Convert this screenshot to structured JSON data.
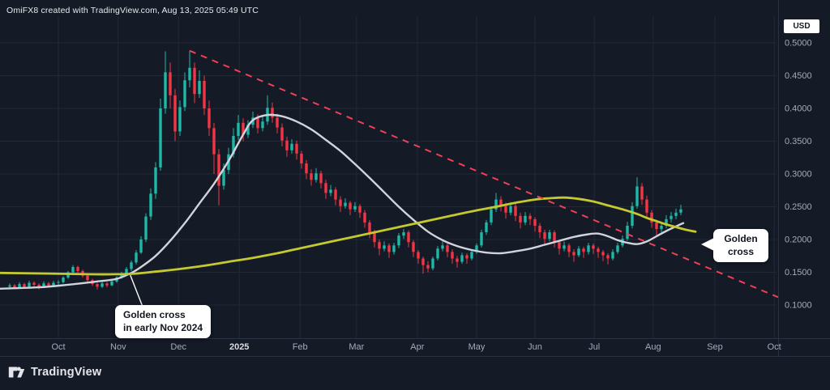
{
  "header": {
    "credit": "OmiFX8 created with TradingView.com, Aug 13, 2025 05:49 UTC"
  },
  "price_axis": {
    "currency_label": "USD",
    "ticks": [
      "0.5000",
      "0.4500",
      "0.4000",
      "0.3500",
      "0.3000",
      "0.2500",
      "0.2000",
      "0.1500",
      "0.1000"
    ]
  },
  "time_axis": {
    "labels": [
      "Oct",
      "Nov",
      "Dec",
      "2025",
      "Feb",
      "Mar",
      "Apr",
      "May",
      "Jun",
      "Jul",
      "Aug",
      "Sep",
      "Oct"
    ]
  },
  "annotations": {
    "nov_cross": {
      "line1": "Golden cross",
      "line2": "in early Nov 2024"
    },
    "aug_cross": {
      "text": "Golden cross"
    }
  },
  "footer": {
    "brand": "TradingView"
  },
  "colors": {
    "background": "#141a26",
    "grid": "#212838",
    "separator": "#2a3142",
    "axis_text": "#a6abb9",
    "axis_text_bright": "#d9dce3",
    "up": "#1fb8a6",
    "down": "#f23645",
    "ma_fast": "#d1d4dc",
    "ma_slow": "#c4c92f",
    "trendline": "#ef4056",
    "pointer": "#ffffff",
    "annotation_bg": "#ffffff",
    "annotation_text": "#10151f"
  },
  "chart_data": {
    "type": "candlestick",
    "title": "",
    "currency": "USD",
    "ylim": [
      0.08,
      0.52
    ],
    "grid": true,
    "price_gridlines": [
      0.5,
      0.45,
      0.4,
      0.35,
      0.3,
      0.25,
      0.2,
      0.15,
      0.1
    ],
    "x_months": [
      "Oct",
      "Nov",
      "Dec",
      "2025",
      "Feb",
      "Mar",
      "Apr",
      "May",
      "Jun",
      "Jul",
      "Aug",
      "Sep",
      "Oct"
    ],
    "candles": [
      [
        0.128,
        0.133,
        0.124,
        0.13
      ],
      [
        0.13,
        0.132,
        0.124,
        0.127
      ],
      [
        0.127,
        0.135,
        0.126,
        0.132
      ],
      [
        0.132,
        0.134,
        0.125,
        0.128
      ],
      [
        0.128,
        0.137,
        0.127,
        0.134
      ],
      [
        0.134,
        0.136,
        0.128,
        0.131
      ],
      [
        0.131,
        0.133,
        0.124,
        0.128
      ],
      [
        0.128,
        0.136,
        0.127,
        0.133
      ],
      [
        0.133,
        0.135,
        0.127,
        0.13
      ],
      [
        0.13,
        0.137,
        0.128,
        0.134
      ],
      [
        0.134,
        0.138,
        0.13,
        0.135
      ],
      [
        0.135,
        0.144,
        0.133,
        0.142
      ],
      [
        0.142,
        0.152,
        0.14,
        0.15
      ],
      [
        0.15,
        0.161,
        0.148,
        0.158
      ],
      [
        0.158,
        0.16,
        0.149,
        0.152
      ],
      [
        0.152,
        0.154,
        0.142,
        0.145
      ],
      [
        0.145,
        0.147,
        0.135,
        0.138
      ],
      [
        0.138,
        0.14,
        0.129,
        0.132
      ],
      [
        0.132,
        0.134,
        0.124,
        0.128
      ],
      [
        0.128,
        0.136,
        0.126,
        0.133
      ],
      [
        0.133,
        0.135,
        0.127,
        0.13
      ],
      [
        0.13,
        0.139,
        0.129,
        0.136
      ],
      [
        0.136,
        0.144,
        0.134,
        0.142
      ],
      [
        0.142,
        0.151,
        0.14,
        0.148
      ],
      [
        0.148,
        0.158,
        0.146,
        0.155
      ],
      [
        0.155,
        0.168,
        0.152,
        0.165
      ],
      [
        0.165,
        0.184,
        0.162,
        0.18
      ],
      [
        0.18,
        0.205,
        0.178,
        0.2
      ],
      [
        0.2,
        0.24,
        0.196,
        0.235
      ],
      [
        0.235,
        0.278,
        0.23,
        0.27
      ],
      [
        0.27,
        0.318,
        0.262,
        0.31
      ],
      [
        0.31,
        0.415,
        0.305,
        0.4
      ],
      [
        0.4,
        0.487,
        0.392,
        0.455
      ],
      [
        0.455,
        0.47,
        0.4,
        0.42
      ],
      [
        0.42,
        0.43,
        0.35,
        0.365
      ],
      [
        0.365,
        0.412,
        0.358,
        0.402
      ],
      [
        0.402,
        0.455,
        0.396,
        0.443
      ],
      [
        0.443,
        0.488,
        0.432,
        0.462
      ],
      [
        0.462,
        0.47,
        0.408,
        0.422
      ],
      [
        0.422,
        0.458,
        0.416,
        0.442
      ],
      [
        0.442,
        0.45,
        0.39,
        0.4
      ],
      [
        0.4,
        0.412,
        0.358,
        0.37
      ],
      [
        0.37,
        0.378,
        0.3,
        0.33
      ],
      [
        0.33,
        0.338,
        0.252,
        0.282
      ],
      [
        0.282,
        0.316,
        0.276,
        0.306
      ],
      [
        0.306,
        0.34,
        0.3,
        0.33
      ],
      [
        0.33,
        0.37,
        0.325,
        0.358
      ],
      [
        0.358,
        0.39,
        0.352,
        0.378
      ],
      [
        0.378,
        0.385,
        0.35,
        0.36
      ],
      [
        0.36,
        0.382,
        0.355,
        0.375
      ],
      [
        0.375,
        0.395,
        0.37,
        0.386
      ],
      [
        0.386,
        0.391,
        0.362,
        0.37
      ],
      [
        0.37,
        0.388,
        0.365,
        0.38
      ],
      [
        0.38,
        0.42,
        0.375,
        0.401
      ],
      [
        0.401,
        0.409,
        0.378,
        0.386
      ],
      [
        0.386,
        0.392,
        0.362,
        0.371
      ],
      [
        0.371,
        0.377,
        0.342,
        0.351
      ],
      [
        0.351,
        0.357,
        0.326,
        0.336
      ],
      [
        0.336,
        0.353,
        0.331,
        0.346
      ],
      [
        0.346,
        0.351,
        0.322,
        0.331
      ],
      [
        0.331,
        0.335,
        0.308,
        0.316
      ],
      [
        0.316,
        0.321,
        0.292,
        0.301
      ],
      [
        0.301,
        0.307,
        0.282,
        0.291
      ],
      [
        0.291,
        0.309,
        0.287,
        0.301
      ],
      [
        0.301,
        0.305,
        0.278,
        0.286
      ],
      [
        0.286,
        0.291,
        0.262,
        0.271
      ],
      [
        0.271,
        0.283,
        0.266,
        0.276
      ],
      [
        0.276,
        0.28,
        0.252,
        0.261
      ],
      [
        0.261,
        0.266,
        0.242,
        0.251
      ],
      [
        0.251,
        0.263,
        0.247,
        0.256
      ],
      [
        0.256,
        0.259,
        0.237,
        0.246
      ],
      [
        0.246,
        0.257,
        0.242,
        0.251
      ],
      [
        0.251,
        0.254,
        0.233,
        0.241
      ],
      [
        0.241,
        0.245,
        0.218,
        0.226
      ],
      [
        0.226,
        0.23,
        0.202,
        0.211
      ],
      [
        0.211,
        0.215,
        0.188,
        0.196
      ],
      [
        0.196,
        0.2,
        0.176,
        0.186
      ],
      [
        0.186,
        0.197,
        0.182,
        0.191
      ],
      [
        0.191,
        0.194,
        0.172,
        0.181
      ],
      [
        0.181,
        0.195,
        0.177,
        0.191
      ],
      [
        0.191,
        0.21,
        0.187,
        0.206
      ],
      [
        0.206,
        0.216,
        0.201,
        0.211
      ],
      [
        0.211,
        0.214,
        0.188,
        0.196
      ],
      [
        0.196,
        0.199,
        0.173,
        0.181
      ],
      [
        0.181,
        0.184,
        0.163,
        0.171
      ],
      [
        0.171,
        0.174,
        0.148,
        0.161
      ],
      [
        0.161,
        0.167,
        0.15,
        0.156
      ],
      [
        0.156,
        0.174,
        0.153,
        0.171
      ],
      [
        0.171,
        0.19,
        0.168,
        0.186
      ],
      [
        0.186,
        0.197,
        0.182,
        0.191
      ],
      [
        0.191,
        0.194,
        0.173,
        0.181
      ],
      [
        0.181,
        0.185,
        0.163,
        0.171
      ],
      [
        0.171,
        0.175,
        0.157,
        0.166
      ],
      [
        0.166,
        0.18,
        0.163,
        0.176
      ],
      [
        0.176,
        0.179,
        0.163,
        0.171
      ],
      [
        0.171,
        0.185,
        0.168,
        0.181
      ],
      [
        0.181,
        0.194,
        0.178,
        0.191
      ],
      [
        0.191,
        0.215,
        0.188,
        0.211
      ],
      [
        0.211,
        0.23,
        0.207,
        0.226
      ],
      [
        0.226,
        0.251,
        0.222,
        0.246
      ],
      [
        0.246,
        0.271,
        0.242,
        0.261
      ],
      [
        0.261,
        0.266,
        0.243,
        0.251
      ],
      [
        0.251,
        0.256,
        0.232,
        0.241
      ],
      [
        0.241,
        0.257,
        0.237,
        0.251
      ],
      [
        0.251,
        0.255,
        0.228,
        0.236
      ],
      [
        0.236,
        0.241,
        0.217,
        0.226
      ],
      [
        0.226,
        0.242,
        0.222,
        0.236
      ],
      [
        0.236,
        0.24,
        0.222,
        0.231
      ],
      [
        0.231,
        0.234,
        0.212,
        0.221
      ],
      [
        0.221,
        0.225,
        0.202,
        0.211
      ],
      [
        0.211,
        0.215,
        0.192,
        0.201
      ],
      [
        0.201,
        0.215,
        0.197,
        0.211
      ],
      [
        0.211,
        0.214,
        0.188,
        0.196
      ],
      [
        0.196,
        0.199,
        0.177,
        0.186
      ],
      [
        0.186,
        0.197,
        0.182,
        0.191
      ],
      [
        0.191,
        0.194,
        0.173,
        0.181
      ],
      [
        0.181,
        0.185,
        0.166,
        0.176
      ],
      [
        0.176,
        0.19,
        0.173,
        0.186
      ],
      [
        0.186,
        0.189,
        0.172,
        0.181
      ],
      [
        0.181,
        0.195,
        0.177,
        0.191
      ],
      [
        0.191,
        0.194,
        0.178,
        0.186
      ],
      [
        0.186,
        0.189,
        0.172,
        0.181
      ],
      [
        0.181,
        0.184,
        0.167,
        0.176
      ],
      [
        0.176,
        0.179,
        0.162,
        0.171
      ],
      [
        0.171,
        0.185,
        0.168,
        0.181
      ],
      [
        0.181,
        0.195,
        0.178,
        0.191
      ],
      [
        0.191,
        0.206,
        0.188,
        0.201
      ],
      [
        0.201,
        0.227,
        0.198,
        0.221
      ],
      [
        0.221,
        0.257,
        0.217,
        0.251
      ],
      [
        0.251,
        0.295,
        0.247,
        0.281
      ],
      [
        0.281,
        0.286,
        0.253,
        0.261
      ],
      [
        0.261,
        0.267,
        0.232,
        0.241
      ],
      [
        0.241,
        0.245,
        0.218,
        0.226
      ],
      [
        0.226,
        0.23,
        0.205,
        0.216
      ],
      [
        0.216,
        0.227,
        0.211,
        0.221
      ],
      [
        0.221,
        0.237,
        0.217,
        0.231
      ],
      [
        0.231,
        0.242,
        0.226,
        0.236
      ],
      [
        0.236,
        0.247,
        0.231,
        0.241
      ],
      [
        0.241,
        0.253,
        0.237,
        0.246
      ]
    ],
    "overlays": [
      {
        "name": "ma_fast_white",
        "type": "line",
        "color_key": "ma_fast",
        "width": 2.4,
        "points": [
          [
            -2,
            0.125
          ],
          [
            6,
            0.127
          ],
          [
            12,
            0.131
          ],
          [
            18,
            0.136
          ],
          [
            22,
            0.14
          ],
          [
            25,
            0.149
          ],
          [
            27,
            0.158
          ],
          [
            30,
            0.175
          ],
          [
            33,
            0.198
          ],
          [
            36,
            0.225
          ],
          [
            39,
            0.255
          ],
          [
            42,
            0.285
          ],
          [
            45,
            0.32
          ],
          [
            48,
            0.36
          ],
          [
            50,
            0.382
          ],
          [
            53,
            0.39
          ],
          [
            56,
            0.388
          ],
          [
            59,
            0.38
          ],
          [
            62,
            0.368
          ],
          [
            65,
            0.352
          ],
          [
            68,
            0.335
          ],
          [
            71,
            0.315
          ],
          [
            74,
            0.294
          ],
          [
            77,
            0.272
          ],
          [
            80,
            0.25
          ],
          [
            83,
            0.23
          ],
          [
            86,
            0.212
          ],
          [
            89,
            0.199
          ],
          [
            92,
            0.19
          ],
          [
            95,
            0.184
          ],
          [
            98,
            0.18
          ],
          [
            101,
            0.179
          ],
          [
            104,
            0.182
          ],
          [
            107,
            0.186
          ],
          [
            110,
            0.192
          ],
          [
            113,
            0.198
          ],
          [
            116,
            0.204
          ],
          [
            119,
            0.208
          ],
          [
            121,
            0.209
          ],
          [
            123,
            0.205
          ],
          [
            125,
            0.199
          ],
          [
            127,
            0.195
          ],
          [
            129,
            0.193
          ],
          [
            131,
            0.197
          ],
          [
            133,
            0.205
          ],
          [
            135,
            0.213
          ],
          [
            137,
            0.22
          ],
          [
            138.5,
            0.225
          ]
        ]
      },
      {
        "name": "ma_slow_yellow",
        "type": "line",
        "color_key": "ma_slow",
        "width": 2.8,
        "points": [
          [
            -2,
            0.149
          ],
          [
            8,
            0.148
          ],
          [
            16,
            0.147
          ],
          [
            22,
            0.147
          ],
          [
            26,
            0.148
          ],
          [
            30,
            0.151
          ],
          [
            35,
            0.155
          ],
          [
            40,
            0.16
          ],
          [
            45,
            0.166
          ],
          [
            50,
            0.172
          ],
          [
            55,
            0.179
          ],
          [
            60,
            0.187
          ],
          [
            65,
            0.195
          ],
          [
            70,
            0.203
          ],
          [
            75,
            0.211
          ],
          [
            80,
            0.219
          ],
          [
            85,
            0.227
          ],
          [
            90,
            0.235
          ],
          [
            95,
            0.243
          ],
          [
            100,
            0.25
          ],
          [
            104,
            0.256
          ],
          [
            108,
            0.261
          ],
          [
            111,
            0.263
          ],
          [
            114,
            0.264
          ],
          [
            117,
            0.262
          ],
          [
            120,
            0.258
          ],
          [
            123,
            0.252
          ],
          [
            126,
            0.246
          ],
          [
            129,
            0.239
          ],
          [
            131,
            0.233
          ],
          [
            133,
            0.228
          ],
          [
            135,
            0.223
          ],
          [
            137,
            0.219
          ],
          [
            139,
            0.215
          ],
          [
            141,
            0.212
          ]
        ]
      }
    ],
    "trendline": {
      "style": "dashed",
      "color_key": "trendline",
      "from": [
        37,
        0.488
      ],
      "to": [
        158,
        0.112
      ]
    },
    "events": [
      {
        "name": "golden_cross_nov_2024",
        "label": "Golden cross in early Nov 2024",
        "candle_index": 24.8,
        "price": 0.148
      },
      {
        "name": "golden_cross_aug_2025",
        "label": "Golden cross",
        "candle_index": 136.8,
        "price": 0.219
      }
    ]
  }
}
